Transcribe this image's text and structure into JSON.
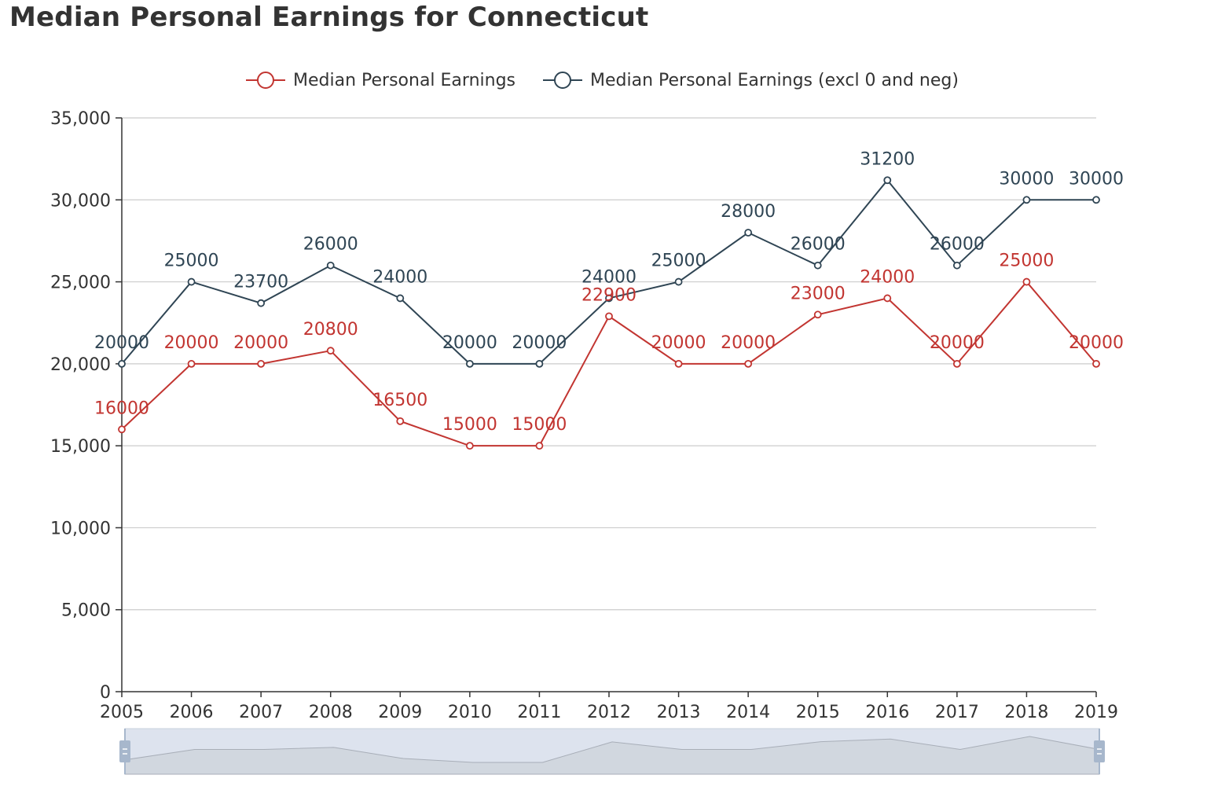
{
  "page": {
    "title": "Median Personal Earnings for Connecticut"
  },
  "chart_data": {
    "type": "line",
    "title": "Median Personal Earnings for Connecticut",
    "xlabel": "",
    "ylabel": "",
    "x": [
      "2005",
      "2006",
      "2007",
      "2008",
      "2009",
      "2010",
      "2011",
      "2012",
      "2013",
      "2014",
      "2015",
      "2016",
      "2017",
      "2018",
      "2019"
    ],
    "ylim": [
      0,
      35000
    ],
    "yticks": [
      0,
      5000,
      10000,
      15000,
      20000,
      25000,
      30000,
      35000
    ],
    "ytick_labels": [
      "0",
      "5,000",
      "10,000",
      "15,000",
      "20,000",
      "25,000",
      "30,000",
      "35,000"
    ],
    "grid": true,
    "legend_position": "top-center",
    "series": [
      {
        "name": "Median Personal Earnings",
        "color": "#c23531",
        "values": [
          16000,
          20000,
          20000,
          20800,
          16500,
          15000,
          15000,
          22900,
          20000,
          20000,
          23000,
          24000,
          20000,
          25000,
          20000
        ]
      },
      {
        "name": "Median Personal Earnings (excl 0 and neg)",
        "color": "#2f4554",
        "values": [
          20000,
          25000,
          23700,
          26000,
          24000,
          20000,
          20000,
          24000,
          25000,
          28000,
          26000,
          31200,
          26000,
          30000,
          30000
        ]
      }
    ],
    "data_zoom": {
      "start_percent": 0,
      "end_percent": 100,
      "preview_series": "Median Personal Earnings"
    }
  }
}
